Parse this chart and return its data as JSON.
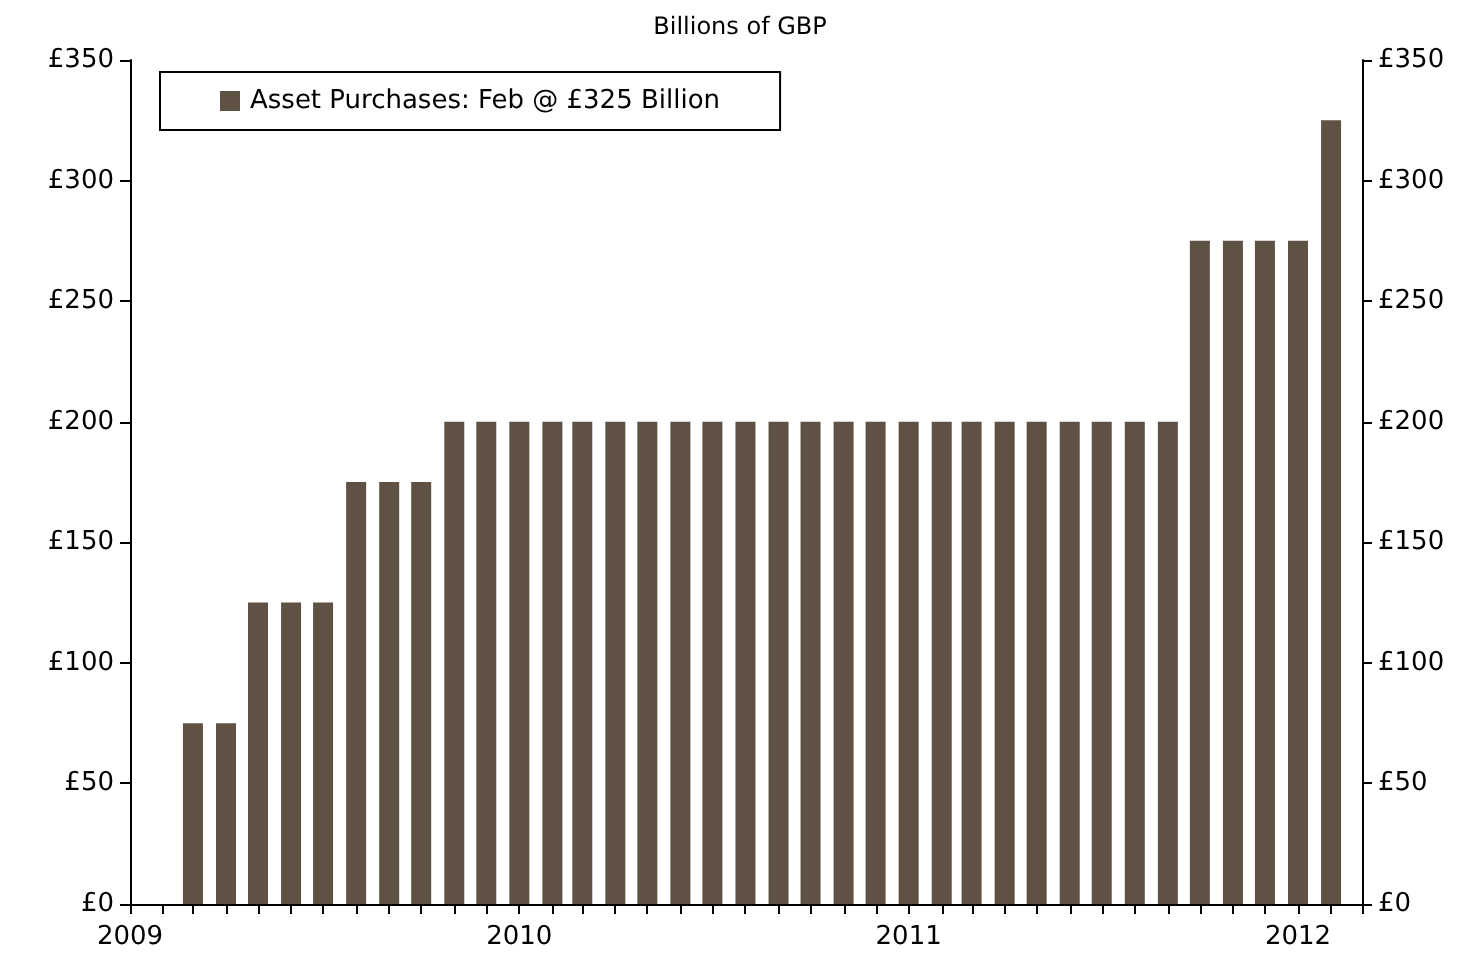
{
  "chart_data": {
    "type": "bar",
    "title": "Billions of GBP",
    "x": [
      "2009-03",
      "2009-04",
      "2009-05",
      "2009-06",
      "2009-07",
      "2009-08",
      "2009-09",
      "2009-10",
      "2009-11",
      "2009-12",
      "2010-01",
      "2010-02",
      "2010-03",
      "2010-04",
      "2010-05",
      "2010-06",
      "2010-07",
      "2010-08",
      "2010-09",
      "2010-10",
      "2010-11",
      "2010-12",
      "2011-01",
      "2011-02",
      "2011-03",
      "2011-04",
      "2011-05",
      "2011-06",
      "2011-07",
      "2011-08",
      "2011-09",
      "2011-10",
      "2011-11",
      "2011-12",
      "2012-01",
      "2012-02"
    ],
    "series": [
      {
        "name": "Asset Purchases: Feb @ £325 Billion",
        "color": "#5f5245",
        "values": [
          75,
          75,
          125,
          125,
          125,
          175,
          175,
          175,
          200,
          200,
          200,
          200,
          200,
          200,
          200,
          200,
          200,
          200,
          200,
          200,
          200,
          200,
          200,
          200,
          200,
          200,
          200,
          200,
          200,
          200,
          200,
          275,
          275,
          275,
          275,
          325
        ]
      }
    ],
    "xlim": [
      "2009-01",
      "2012-03"
    ],
    "xticks": [
      "2009",
      "2010",
      "2011",
      "2012"
    ],
    "ylim": [
      0,
      350
    ],
    "yticks": [
      {
        "value": 0,
        "label": "£0"
      },
      {
        "value": 50,
        "label": "£50"
      },
      {
        "value": 100,
        "label": "£100"
      },
      {
        "value": 150,
        "label": "£150"
      },
      {
        "value": 200,
        "label": "£200"
      },
      {
        "value": 250,
        "label": "£250"
      },
      {
        "value": 300,
        "label": "£300"
      },
      {
        "value": 350,
        "label": "£350"
      }
    ],
    "y2lim": [
      0,
      350
    ],
    "y2ticks": [
      {
        "value": 0,
        "label": "£0"
      },
      {
        "value": 50,
        "label": "£50"
      },
      {
        "value": 100,
        "label": "£100"
      },
      {
        "value": 150,
        "label": "£150"
      },
      {
        "value": 200,
        "label": "£200"
      },
      {
        "value": 250,
        "label": "£250"
      },
      {
        "value": 300,
        "label": "£300"
      },
      {
        "value": 350,
        "label": "£350"
      }
    ],
    "grid": false,
    "legend": "top left"
  }
}
